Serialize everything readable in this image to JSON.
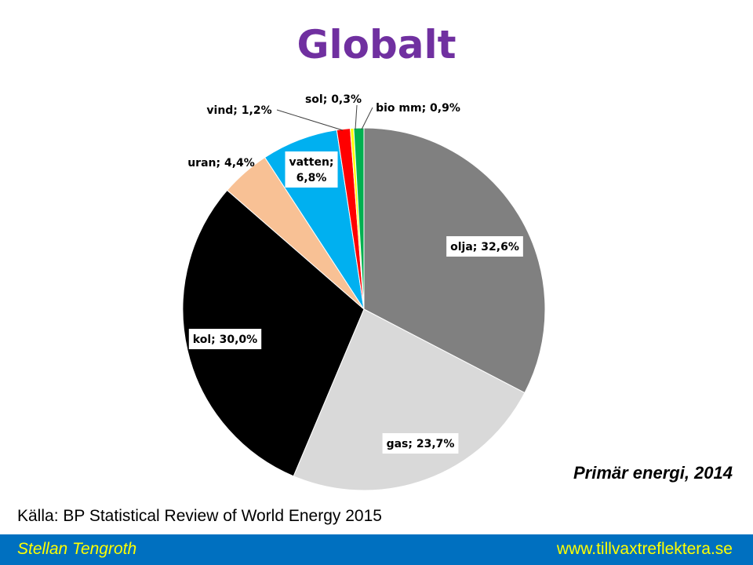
{
  "slide": {
    "title": "Globalt",
    "subtitle": "Primär energi, 2014",
    "source": "Källa: BP Statistical Review of World Energy 2015",
    "footer_author": "Stellan Tengroth",
    "footer_url": "www.tillvaxtreflektera.se"
  },
  "chart_data": {
    "type": "pie",
    "title": "Globalt",
    "subtitle": "Primär energi, 2014",
    "start": "12 o'clock",
    "direction": "clockwise",
    "slices": [
      {
        "label": "olja; 32,6%",
        "name": "olja",
        "value": 32.6,
        "color": "#808080"
      },
      {
        "label": "gas; 23,7%",
        "name": "gas",
        "value": 23.7,
        "color": "#d9d9d9"
      },
      {
        "label": "kol; 30,0%",
        "name": "kol",
        "value": 30.0,
        "color": "#000000"
      },
      {
        "label": "uran; 4,4%",
        "name": "uran",
        "value": 4.4,
        "color": "#f8c195"
      },
      {
        "label": "vatten; 6,8%",
        "label_lines": [
          "vatten;",
          "6,8%"
        ],
        "name": "vatten",
        "value": 6.8,
        "color": "#00b0f0"
      },
      {
        "label": "vind; 1,2%",
        "name": "vind",
        "value": 1.2,
        "color": "#ff0000"
      },
      {
        "label": "sol; 0,3%",
        "name": "sol",
        "value": 0.3,
        "color": "#ffff00"
      },
      {
        "label": "bio mm; 0,9%",
        "name": "bio mm",
        "value": 0.9,
        "color": "#00b050"
      }
    ]
  }
}
